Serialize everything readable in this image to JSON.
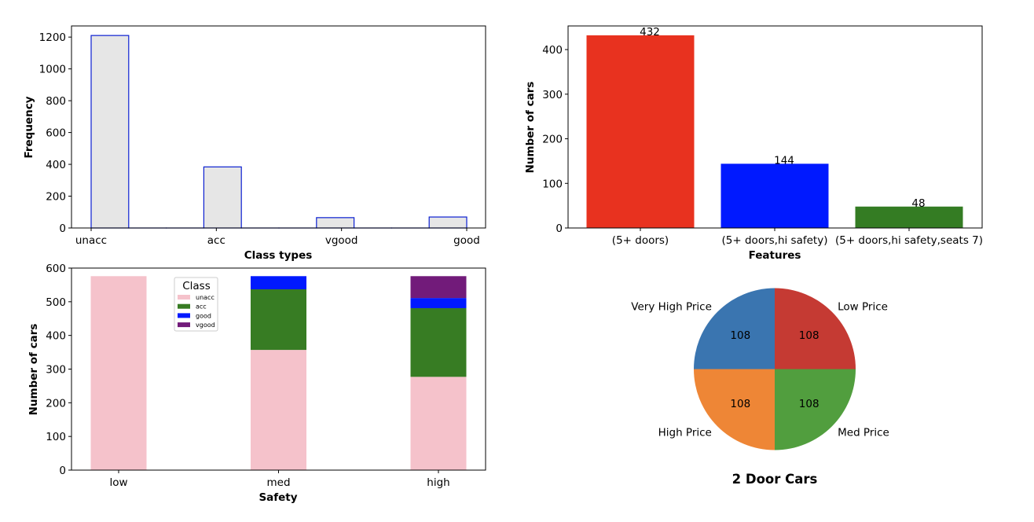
{
  "chart_data": [
    {
      "type": "bar",
      "subtype": "histogram",
      "title": "",
      "xlabel": "Class types",
      "ylabel": "Frequency",
      "tick_labels": [
        "unacc",
        "acc",
        "vgood",
        "good"
      ],
      "yticks": [
        0,
        200,
        400,
        600,
        800,
        1000,
        1200
      ],
      "ylim": [
        0,
        1270
      ],
      "bins": [
        {
          "category": "unacc",
          "value": 1210
        },
        {
          "category": "",
          "value": 0
        },
        {
          "category": "",
          "value": 0
        },
        {
          "category": "acc",
          "value": 384
        },
        {
          "category": "",
          "value": 0
        },
        {
          "category": "",
          "value": 0
        },
        {
          "category": "vgood",
          "value": 65
        },
        {
          "category": "",
          "value": 0
        },
        {
          "category": "",
          "value": 0
        },
        {
          "category": "good",
          "value": 69
        }
      ],
      "colors": {
        "fill": "#e6e6e6",
        "edge": "#0b1fd1"
      }
    },
    {
      "type": "bar",
      "title": "",
      "xlabel": "Features",
      "ylabel": "Number of cars",
      "categories": [
        "(5+ doors)",
        "(5+ doors,hi safety)",
        "(5+ doors,hi safety,seats 7)"
      ],
      "values": [
        432,
        144,
        48
      ],
      "data_labels": [
        "432",
        "144",
        "48"
      ],
      "yticks": [
        0,
        100,
        200,
        300,
        400
      ],
      "ylim": [
        0,
        453
      ],
      "colors": [
        "#e8321f",
        "#0019ff",
        "#347c23"
      ]
    },
    {
      "type": "bar",
      "subtype": "stacked",
      "title": "",
      "xlabel": "Safety",
      "ylabel": "Number of cars",
      "categories": [
        "low",
        "med",
        "high"
      ],
      "yticks": [
        0,
        100,
        200,
        300,
        400,
        500,
        600
      ],
      "ylim": [
        0,
        600
      ],
      "legend": {
        "title": "Class",
        "placement": "top-center"
      },
      "series": [
        {
          "name": "unacc",
          "values": [
            576,
            357,
            277
          ],
          "color": "#f5c2cb"
        },
        {
          "name": "acc",
          "values": [
            0,
            180,
            204
          ],
          "color": "#377c23"
        },
        {
          "name": "good",
          "values": [
            0,
            39,
            30
          ],
          "color": "#0019ff"
        },
        {
          "name": "vgood",
          "values": [
            0,
            0,
            65
          ],
          "color": "#721b7a"
        }
      ]
    },
    {
      "type": "pie",
      "title": "2 Door Cars",
      "slices": [
        {
          "label": "Very High Price",
          "value": 108,
          "data_label": "108",
          "color": "#3a75b0"
        },
        {
          "label": "High Price",
          "value": 108,
          "data_label": "108",
          "color": "#ee8636"
        },
        {
          "label": "Med Price",
          "value": 108,
          "data_label": "108",
          "color": "#519e3e"
        },
        {
          "label": "Low Price",
          "value": 108,
          "data_label": "108",
          "color": "#c53a33"
        }
      ]
    }
  ]
}
